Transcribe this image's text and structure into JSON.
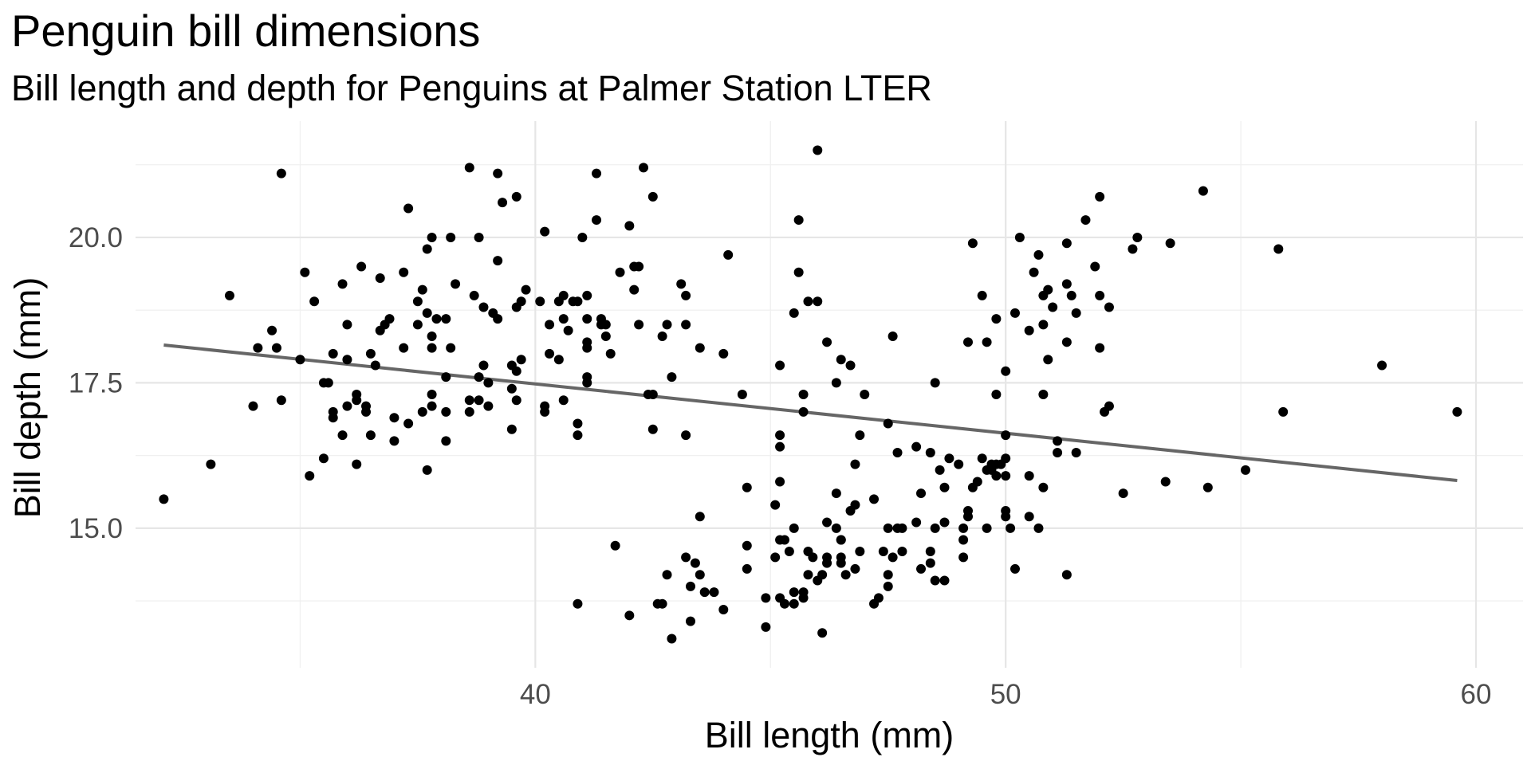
{
  "chart_data": {
    "type": "scatter",
    "title": "Penguin bill dimensions",
    "subtitle": "Bill length and depth for Penguins at Palmer Station LTER",
    "xlabel": "Bill length (mm)",
    "ylabel": "Bill depth (mm)",
    "xlim": [
      31.5,
      61.0
    ],
    "ylim": [
      12.6,
      22.0
    ],
    "x_ticks": [
      40,
      50,
      60
    ],
    "x_tick_labels": [
      "40",
      "50",
      "60"
    ],
    "y_ticks": [
      15.0,
      17.5,
      20.0
    ],
    "y_tick_labels": [
      "15.0",
      "17.5",
      "20.0"
    ],
    "x_minor_ticks": [
      35,
      45,
      55
    ],
    "y_minor_ticks": [
      13.75,
      16.25,
      18.75,
      21.25
    ],
    "grid": true,
    "legend": "none",
    "point_color": "#000000",
    "trend_color": "#666666",
    "trend_line": {
      "x": [
        32.1,
        59.6
      ],
      "y": [
        18.15,
        15.82
      ]
    },
    "points": [
      [
        32.1,
        15.5
      ],
      [
        33.1,
        16.1
      ],
      [
        33.5,
        19.0
      ],
      [
        34.0,
        17.1
      ],
      [
        34.1,
        18.1
      ],
      [
        34.4,
        18.4
      ],
      [
        34.5,
        18.1
      ],
      [
        34.6,
        17.2
      ],
      [
        34.6,
        21.1
      ],
      [
        35.0,
        17.9
      ],
      [
        35.1,
        19.4
      ],
      [
        35.2,
        15.9
      ],
      [
        35.3,
        18.9
      ],
      [
        35.5,
        16.2
      ],
      [
        35.5,
        17.5
      ],
      [
        35.6,
        17.5
      ],
      [
        35.7,
        17.0
      ],
      [
        35.7,
        16.9
      ],
      [
        35.7,
        18.0
      ],
      [
        35.9,
        16.6
      ],
      [
        35.9,
        19.2
      ],
      [
        36.0,
        17.1
      ],
      [
        36.0,
        17.9
      ],
      [
        36.0,
        18.5
      ],
      [
        36.2,
        17.2
      ],
      [
        36.2,
        17.3
      ],
      [
        36.2,
        16.1
      ],
      [
        36.3,
        19.5
      ],
      [
        36.4,
        17.0
      ],
      [
        36.4,
        17.1
      ],
      [
        36.5,
        16.6
      ],
      [
        36.5,
        18.0
      ],
      [
        36.6,
        17.8
      ],
      [
        36.7,
        18.4
      ],
      [
        36.7,
        19.3
      ],
      [
        36.8,
        18.5
      ],
      [
        36.9,
        18.6
      ],
      [
        37.0,
        16.5
      ],
      [
        37.0,
        16.9
      ],
      [
        37.2,
        18.1
      ],
      [
        37.2,
        19.4
      ],
      [
        37.3,
        16.8
      ],
      [
        37.3,
        20.5
      ],
      [
        37.5,
        18.9
      ],
      [
        37.5,
        18.5
      ],
      [
        37.6,
        17.0
      ],
      [
        37.6,
        19.1
      ],
      [
        37.7,
        16.0
      ],
      [
        37.7,
        18.7
      ],
      [
        37.7,
        19.8
      ],
      [
        37.8,
        17.1
      ],
      [
        37.8,
        17.3
      ],
      [
        37.8,
        18.1
      ],
      [
        37.8,
        18.3
      ],
      [
        37.8,
        20.0
      ],
      [
        37.9,
        18.6
      ],
      [
        38.1,
        17.0
      ],
      [
        38.1,
        16.5
      ],
      [
        38.1,
        17.6
      ],
      [
        38.1,
        18.6
      ],
      [
        38.2,
        18.1
      ],
      [
        38.2,
        20.0
      ],
      [
        38.3,
        19.2
      ],
      [
        38.6,
        17.2
      ],
      [
        38.6,
        21.2
      ],
      [
        38.6,
        17.0
      ],
      [
        38.7,
        19.0
      ],
      [
        38.8,
        17.2
      ],
      [
        38.8,
        17.6
      ],
      [
        38.8,
        20.0
      ],
      [
        38.9,
        17.8
      ],
      [
        38.9,
        18.8
      ],
      [
        39.0,
        17.1
      ],
      [
        39.0,
        17.5
      ],
      [
        39.1,
        18.7
      ],
      [
        39.2,
        18.6
      ],
      [
        39.2,
        19.6
      ],
      [
        39.2,
        21.1
      ],
      [
        39.3,
        20.6
      ],
      [
        39.5,
        16.7
      ],
      [
        39.5,
        17.4
      ],
      [
        39.5,
        17.8
      ],
      [
        39.6,
        17.7
      ],
      [
        39.6,
        17.2
      ],
      [
        39.6,
        18.8
      ],
      [
        39.6,
        20.7
      ],
      [
        39.7,
        17.9
      ],
      [
        39.7,
        18.9
      ],
      [
        39.8,
        19.1
      ],
      [
        40.1,
        18.9
      ],
      [
        40.2,
        17.1
      ],
      [
        40.2,
        17.0
      ],
      [
        40.2,
        20.1
      ],
      [
        40.3,
        18.0
      ],
      [
        40.3,
        18.5
      ],
      [
        40.5,
        17.9
      ],
      [
        40.5,
        18.9
      ],
      [
        40.6,
        17.2
      ],
      [
        40.6,
        18.6
      ],
      [
        40.6,
        19.0
      ],
      [
        40.7,
        18.4
      ],
      [
        40.8,
        18.9
      ],
      [
        40.9,
        16.6
      ],
      [
        40.9,
        16.8
      ],
      [
        40.9,
        18.9
      ],
      [
        41.0,
        20.0
      ],
      [
        41.1,
        17.5
      ],
      [
        41.1,
        17.6
      ],
      [
        41.1,
        18.1
      ],
      [
        41.1,
        18.2
      ],
      [
        41.1,
        18.6
      ],
      [
        41.1,
        19.0
      ],
      [
        41.3,
        20.3
      ],
      [
        41.3,
        21.1
      ],
      [
        41.4,
        18.5
      ],
      [
        41.4,
        18.6
      ],
      [
        41.5,
        18.3
      ],
      [
        41.5,
        18.5
      ],
      [
        41.6,
        18.0
      ],
      [
        41.8,
        19.4
      ],
      [
        42.0,
        20.2
      ],
      [
        42.1,
        19.1
      ],
      [
        42.1,
        19.5
      ],
      [
        42.2,
        18.5
      ],
      [
        42.2,
        19.5
      ],
      [
        42.3,
        21.2
      ],
      [
        42.5,
        16.7
      ],
      [
        42.5,
        17.3
      ],
      [
        42.5,
        20.7
      ],
      [
        42.8,
        18.5
      ],
      [
        42.9,
        17.6
      ],
      [
        43.2,
        19.0
      ],
      [
        43.2,
        18.5
      ],
      [
        43.1,
        19.2
      ],
      [
        43.2,
        16.6
      ],
      [
        43.5,
        18.1
      ],
      [
        44.1,
        19.7
      ],
      [
        44.0,
        18.0
      ],
      [
        41.7,
        14.7
      ],
      [
        40.9,
        13.7
      ],
      [
        42.0,
        13.5
      ],
      [
        42.4,
        17.3
      ],
      [
        42.6,
        13.7
      ],
      [
        42.7,
        13.7
      ],
      [
        42.7,
        18.3
      ],
      [
        42.8,
        14.2
      ],
      [
        42.9,
        13.1
      ],
      [
        43.2,
        14.5
      ],
      [
        43.3,
        13.4
      ],
      [
        43.3,
        14.0
      ],
      [
        43.4,
        14.4
      ],
      [
        43.5,
        14.2
      ],
      [
        43.5,
        15.2
      ],
      [
        43.6,
        13.9
      ],
      [
        43.8,
        13.9
      ],
      [
        44.0,
        13.6
      ],
      [
        44.4,
        17.3
      ],
      [
        44.5,
        15.7
      ],
      [
        44.5,
        14.3
      ],
      [
        44.5,
        14.7
      ],
      [
        44.9,
        13.3
      ],
      [
        44.9,
        13.8
      ],
      [
        45.1,
        14.5
      ],
      [
        45.1,
        15.4
      ],
      [
        45.2,
        13.8
      ],
      [
        45.2,
        14.8
      ],
      [
        45.2,
        16.4
      ],
      [
        45.2,
        16.6
      ],
      [
        45.2,
        15.8
      ],
      [
        45.2,
        17.8
      ],
      [
        45.3,
        13.7
      ],
      [
        45.4,
        14.6
      ],
      [
        45.5,
        13.7
      ],
      [
        45.5,
        13.9
      ],
      [
        45.5,
        15.0
      ],
      [
        45.5,
        18.7
      ],
      [
        45.6,
        20.3
      ],
      [
        45.6,
        19.4
      ],
      [
        45.7,
        13.9
      ],
      [
        45.7,
        17.0
      ],
      [
        45.7,
        17.3
      ],
      [
        45.8,
        14.2
      ],
      [
        45.8,
        14.6
      ],
      [
        45.8,
        18.9
      ],
      [
        46.0,
        21.5
      ],
      [
        46.0,
        18.9
      ],
      [
        46.1,
        13.2
      ],
      [
        46.1,
        14.2
      ],
      [
        46.2,
        14.4
      ],
      [
        46.2,
        14.5
      ],
      [
        46.2,
        15.1
      ],
      [
        46.2,
        18.2
      ],
      [
        46.4,
        15.6
      ],
      [
        46.4,
        17.5
      ],
      [
        46.4,
        15.0
      ],
      [
        46.5,
        14.4
      ],
      [
        46.5,
        14.8
      ],
      [
        46.5,
        17.9
      ],
      [
        46.5,
        14.5
      ],
      [
        46.6,
        14.2
      ],
      [
        46.7,
        15.3
      ],
      [
        46.7,
        17.8
      ],
      [
        46.8,
        14.3
      ],
      [
        46.8,
        15.4
      ],
      [
        46.8,
        16.1
      ],
      [
        46.9,
        14.6
      ],
      [
        46.9,
        16.6
      ],
      [
        47.0,
        17.3
      ],
      [
        47.2,
        13.7
      ],
      [
        47.2,
        15.5
      ],
      [
        47.3,
        13.8
      ],
      [
        47.4,
        14.6
      ],
      [
        47.5,
        14.0
      ],
      [
        47.5,
        14.2
      ],
      [
        47.5,
        15.0
      ],
      [
        47.5,
        16.8
      ],
      [
        47.6,
        14.5
      ],
      [
        47.6,
        18.3
      ],
      [
        47.7,
        15.0
      ],
      [
        47.8,
        15.0
      ],
      [
        48.1,
        15.1
      ],
      [
        48.1,
        16.4
      ],
      [
        48.2,
        14.3
      ],
      [
        48.2,
        15.6
      ],
      [
        48.4,
        14.4
      ],
      [
        48.4,
        14.6
      ],
      [
        48.4,
        16.3
      ],
      [
        48.5,
        14.1
      ],
      [
        48.5,
        15.0
      ],
      [
        48.5,
        17.5
      ],
      [
        48.6,
        16.0
      ],
      [
        48.7,
        14.1
      ],
      [
        48.7,
        15.1
      ],
      [
        48.7,
        15.7
      ],
      [
        48.8,
        16.2
      ],
      [
        49.0,
        16.1
      ],
      [
        49.1,
        14.5
      ],
      [
        49.1,
        14.8
      ],
      [
        49.1,
        15.0
      ],
      [
        49.2,
        15.2
      ],
      [
        49.2,
        18.2
      ],
      [
        49.3,
        15.7
      ],
      [
        49.3,
        19.9
      ],
      [
        49.4,
        15.8
      ],
      [
        49.5,
        16.2
      ],
      [
        49.5,
        19.0
      ],
      [
        49.6,
        15.0
      ],
      [
        49.6,
        16.0
      ],
      [
        49.6,
        18.2
      ],
      [
        49.7,
        16.1
      ],
      [
        49.8,
        15.9
      ],
      [
        49.8,
        16.1
      ],
      [
        49.8,
        17.3
      ],
      [
        49.8,
        18.6
      ],
      [
        49.9,
        16.1
      ],
      [
        50.0,
        15.2
      ],
      [
        50.0,
        15.3
      ],
      [
        50.0,
        15.9
      ],
      [
        50.0,
        16.2
      ],
      [
        50.0,
        16.6
      ],
      [
        50.0,
        17.7
      ],
      [
        50.1,
        15.0
      ],
      [
        50.2,
        14.3
      ],
      [
        50.2,
        18.7
      ],
      [
        50.3,
        20.0
      ],
      [
        50.5,
        15.2
      ],
      [
        50.5,
        15.9
      ],
      [
        50.5,
        18.4
      ],
      [
        50.6,
        19.4
      ],
      [
        50.7,
        15.0
      ],
      [
        50.7,
        19.7
      ],
      [
        50.8,
        15.7
      ],
      [
        50.8,
        17.3
      ],
      [
        50.8,
        18.5
      ],
      [
        50.8,
        19.0
      ],
      [
        50.9,
        17.9
      ],
      [
        50.9,
        19.1
      ],
      [
        51.0,
        18.8
      ],
      [
        51.1,
        16.3
      ],
      [
        51.1,
        16.5
      ],
      [
        51.3,
        14.2
      ],
      [
        51.3,
        18.2
      ],
      [
        51.3,
        19.2
      ],
      [
        51.3,
        19.9
      ],
      [
        51.4,
        19.0
      ],
      [
        51.5,
        16.3
      ],
      [
        51.5,
        18.7
      ],
      [
        51.7,
        20.3
      ],
      [
        51.9,
        19.5
      ],
      [
        52.0,
        18.1
      ],
      [
        52.0,
        19.0
      ],
      [
        52.0,
        20.7
      ],
      [
        52.1,
        17.0
      ],
      [
        52.2,
        17.1
      ],
      [
        52.2,
        18.8
      ],
      [
        52.5,
        15.6
      ],
      [
        52.7,
        19.8
      ],
      [
        52.8,
        20.0
      ],
      [
        53.4,
        15.8
      ],
      [
        53.5,
        19.9
      ],
      [
        54.2,
        20.8
      ],
      [
        54.3,
        15.7
      ],
      [
        55.1,
        16.0
      ],
      [
        55.8,
        19.8
      ],
      [
        55.9,
        17.0
      ],
      [
        58.0,
        17.8
      ],
      [
        59.6,
        17.0
      ],
      [
        46.0,
        14.1
      ],
      [
        45.9,
        14.5
      ],
      [
        46.5,
        14.8
      ],
      [
        45.3,
        14.8
      ],
      [
        45.7,
        13.8
      ],
      [
        49.7,
        16.0
      ],
      [
        47.7,
        16.3
      ],
      [
        47.8,
        14.6
      ],
      [
        49.2,
        15.3
      ]
    ]
  }
}
